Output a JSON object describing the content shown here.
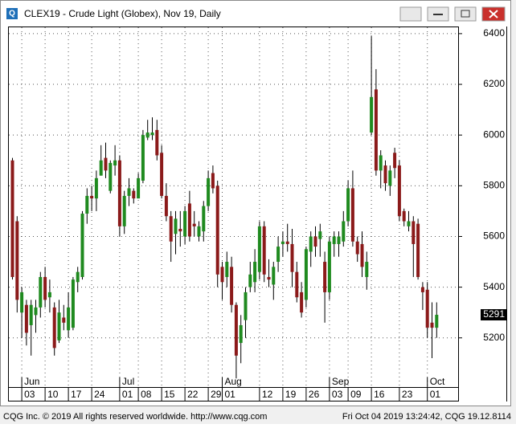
{
  "window": {
    "footer_left": "CQG Inc. © 2019 All rights reserved worldwide. http://www.cqg.com",
    "footer_right": "Fri Oct 04 2019 13:24:42, CQG 19.12.8114"
  },
  "chart_data": {
    "type": "candlestick",
    "title": "CLEX19 - Crude Light (Globex), Nov 19, Daily",
    "up_color": "#1f8a1f",
    "down_color": "#8b1a1a",
    "grid": true,
    "ylim": [
      5006,
      6425
    ],
    "yticks": [
      5200,
      5400,
      5600,
      5800,
      6000,
      6200,
      6400
    ],
    "categories": [
      null,
      null,
      "03",
      null,
      null,
      null,
      null,
      "10",
      null,
      null,
      null,
      null,
      "17",
      null,
      null,
      null,
      null,
      "24",
      null,
      null,
      null,
      null,
      null,
      "01",
      null,
      null,
      null,
      "08",
      null,
      null,
      null,
      null,
      "15",
      null,
      null,
      null,
      null,
      "22",
      null,
      null,
      null,
      null,
      "29",
      null,
      null,
      "01",
      null,
      null,
      null,
      null,
      null,
      null,
      null,
      "12",
      null,
      null,
      null,
      null,
      "19",
      null,
      null,
      null,
      null,
      "26",
      null,
      null,
      null,
      null,
      "03",
      null,
      null,
      null,
      "09",
      null,
      null,
      null,
      null,
      "16",
      null,
      null,
      null,
      null,
      null,
      "23",
      null,
      null,
      null,
      null,
      null,
      "01",
      null,
      null
    ],
    "months": [
      null,
      null,
      "Jun",
      null,
      null,
      null,
      null,
      null,
      null,
      null,
      null,
      null,
      null,
      null,
      null,
      null,
      null,
      null,
      null,
      null,
      null,
      null,
      null,
      "Jul",
      null,
      null,
      null,
      null,
      null,
      null,
      null,
      null,
      null,
      null,
      null,
      null,
      null,
      null,
      null,
      null,
      null,
      null,
      null,
      null,
      null,
      "Aug",
      null,
      null,
      null,
      null,
      null,
      null,
      null,
      null,
      null,
      null,
      null,
      null,
      null,
      null,
      null,
      null,
      null,
      null,
      null,
      null,
      null,
      null,
      "Sep",
      null,
      null,
      null,
      null,
      null,
      null,
      null,
      null,
      null,
      null,
      null,
      null,
      null,
      null,
      null,
      null,
      null,
      null,
      null,
      null,
      "Oct",
      null,
      null
    ],
    "open": [
      5900,
      5660,
      5300,
      5330,
      5250,
      5290,
      5320,
      5440,
      5360,
      5320,
      5190,
      5280,
      5230,
      5240,
      5420,
      5440,
      5690,
      5760,
      5750,
      5840,
      5910,
      5780,
      5880,
      5900,
      5640,
      5760,
      5780,
      5750,
      5820,
      5990,
      6000,
      6020,
      5930,
      5760,
      5680,
      5610,
      5630,
      5600,
      5730,
      5650,
      5600,
      5620,
      5720,
      5850,
      5800,
      5480,
      5440,
      5480,
      5330,
      5180,
      5270,
      5400,
      5420,
      5460,
      5640,
      5440,
      5410,
      5500,
      5570,
      5580,
      5570,
      5460,
      5380,
      5350,
      5540,
      5600,
      5590,
      5500,
      5380,
      5570,
      5570,
      5580,
      5660,
      5790,
      5580,
      5570,
      5440,
      6010,
      6180,
      5860,
      5880,
      5800,
      5930,
      5880,
      5700,
      5640,
      5660,
      5650,
      5400,
      5390,
      5260,
      5240
    ],
    "high": [
      5910,
      5680,
      5400,
      5350,
      5350,
      5350,
      5460,
      5480,
      5430,
      5340,
      5350,
      5330,
      5380,
      5440,
      5480,
      5700,
      5790,
      5800,
      5860,
      5960,
      5970,
      5900,
      5960,
      5920,
      5780,
      5830,
      5790,
      5850,
      6020,
      6060,
      6070,
      6060,
      5960,
      5810,
      5700,
      5700,
      5700,
      5720,
      5780,
      5700,
      5660,
      5740,
      5860,
      5880,
      5820,
      5500,
      5540,
      5520,
      5340,
      5290,
      5400,
      5500,
      5550,
      5660,
      5660,
      5510,
      5500,
      5600,
      5620,
      5650,
      5630,
      5500,
      5420,
      5560,
      5620,
      5640,
      5650,
      5540,
      5600,
      5620,
      5620,
      5700,
      5820,
      5860,
      5600,
      5620,
      5540,
      6390,
      6260,
      5940,
      5900,
      5880,
      5950,
      5900,
      5710,
      5700,
      5680,
      5670,
      5420,
      5420,
      5340,
      5340
    ],
    "low": [
      5430,
      5300,
      5200,
      5170,
      5130,
      5220,
      5280,
      5320,
      5300,
      5130,
      5180,
      5230,
      5200,
      5230,
      5380,
      5430,
      5650,
      5700,
      5700,
      5840,
      5830,
      5770,
      5840,
      5600,
      5610,
      5720,
      5730,
      5750,
      5810,
      5980,
      5980,
      5900,
      5750,
      5660,
      5500,
      5530,
      5560,
      5570,
      5580,
      5600,
      5580,
      5580,
      5700,
      5770,
      5400,
      5350,
      5400,
      5300,
      5040,
      5100,
      5200,
      5380,
      5380,
      5430,
      5420,
      5400,
      5350,
      5460,
      5520,
      5540,
      5400,
      5340,
      5280,
      5320,
      5480,
      5520,
      5520,
      5260,
      5350,
      5520,
      5520,
      5560,
      5640,
      5560,
      5500,
      5440,
      5390,
      6000,
      5840,
      5790,
      5780,
      5760,
      5830,
      5660,
      5640,
      5620,
      5440,
      5430,
      5310,
      5200,
      5120,
      5200
    ],
    "close": [
      5440,
      5350,
      5380,
      5220,
      5330,
      5320,
      5440,
      5350,
      5380,
      5160,
      5300,
      5260,
      5320,
      5430,
      5460,
      5690,
      5760,
      5750,
      5830,
      5900,
      5860,
      5890,
      5900,
      5640,
      5760,
      5790,
      5750,
      5830,
      6000,
      6010,
      6010,
      5920,
      5760,
      5680,
      5580,
      5670,
      5620,
      5700,
      5600,
      5640,
      5640,
      5720,
      5830,
      5790,
      5450,
      5420,
      5500,
      5330,
      5130,
      5250,
      5380,
      5450,
      5500,
      5640,
      5450,
      5430,
      5480,
      5560,
      5580,
      5570,
      5460,
      5360,
      5300,
      5550,
      5600,
      5560,
      5620,
      5380,
      5580,
      5600,
      5600,
      5660,
      5790,
      5580,
      5530,
      5480,
      5500,
      6150,
      5860,
      5920,
      5810,
      5860,
      5870,
      5680,
      5660,
      5660,
      5570,
      5440,
      5380,
      5240,
      5240,
      5291
    ]
  }
}
